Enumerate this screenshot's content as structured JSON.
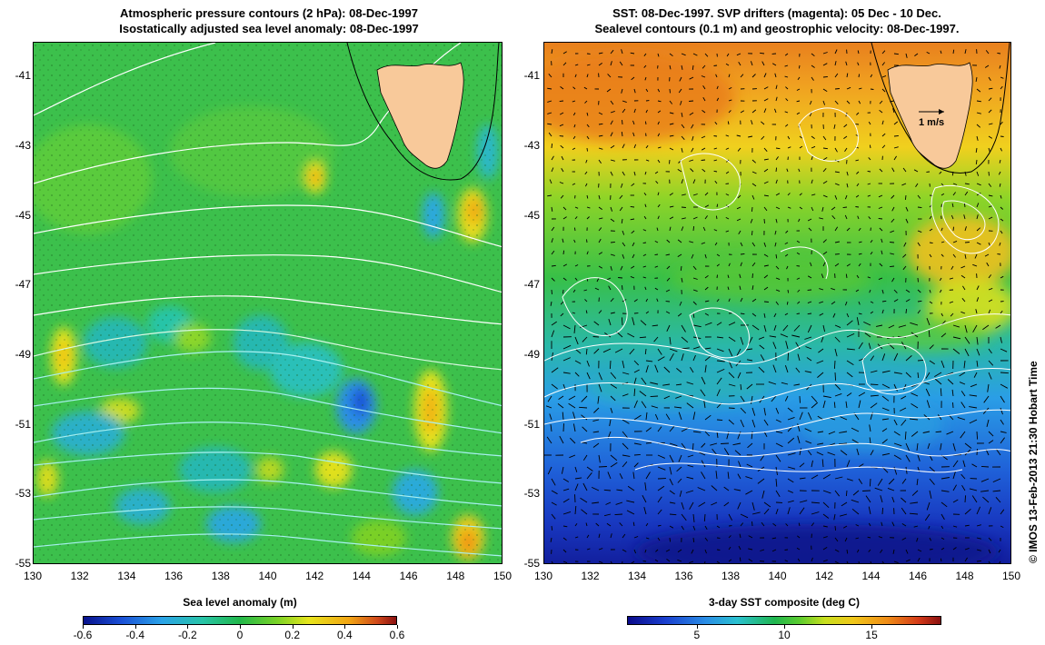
{
  "left_map": {
    "title_line1": "Atmospheric pressure contours (2 hPa): 08-Dec-1997",
    "title_line2": "Isostatically adjusted sea level anomaly: 08-Dec-1997",
    "colorbar_label": "Sea level anomaly (m)",
    "colorbar_ticks": [
      "-0.6",
      "-0.4",
      "-0.2",
      "0",
      "0.2",
      "0.4",
      "0.6"
    ],
    "colorbar_values": [
      -0.6,
      -0.4,
      -0.2,
      0,
      0.2,
      0.4,
      0.6
    ],
    "colorbar_range": [
      -0.6,
      0.6
    ]
  },
  "right_map": {
    "title_line1": "SST: 08-Dec-1997. SVP drifters (magenta): 05 Dec - 10 Dec.",
    "title_line2": "Sealevel contours (0.1 m) and geostrophic velocity: 08-Dec-1997.",
    "colorbar_label": "3-day SST composite (deg C)",
    "colorbar_ticks": [
      "5",
      "10",
      "15"
    ],
    "colorbar_values": [
      5,
      10,
      15
    ],
    "colorbar_range": [
      1,
      19
    ],
    "vector_scale_label": "1 m/s"
  },
  "axes": {
    "x_ticks": [
      "130",
      "132",
      "134",
      "136",
      "138",
      "140",
      "142",
      "144",
      "146",
      "148",
      "150"
    ],
    "x_values": [
      130,
      132,
      134,
      136,
      138,
      140,
      142,
      144,
      146,
      148,
      150
    ],
    "y_ticks": [
      "-41",
      "-43",
      "-45",
      "-47",
      "-49",
      "-51",
      "-53",
      "-55"
    ],
    "y_values": [
      -41,
      -43,
      -45,
      -47,
      -49,
      -51,
      -53,
      -55
    ],
    "lon_range": [
      130,
      150
    ],
    "lat_range": [
      -40,
      -55
    ]
  },
  "credit": "© IMOS 13-Feb-2013 21:30 Hobart Time",
  "colors": {
    "land": "#f8c99a",
    "sla_background": "#3ac24a",
    "sst_warm": "#f0a020",
    "sst_cold": "#1a3fcf",
    "contour": "#ffffff",
    "drifter": "#e020e0"
  }
}
